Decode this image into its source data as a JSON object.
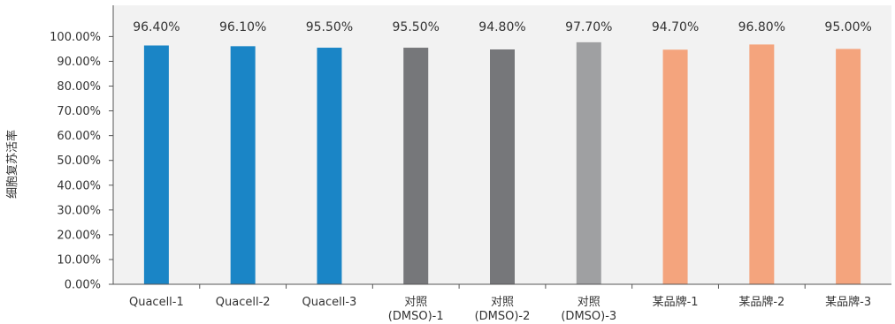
{
  "chart_data": {
    "type": "bar",
    "categories": [
      [
        "Quacell-1"
      ],
      [
        "Quacell-2"
      ],
      [
        "Quacell-3"
      ],
      [
        "对照",
        "(DMSO)-1"
      ],
      [
        "对照",
        "(DMSO)-2"
      ],
      [
        "对照",
        "(DMSO)-3"
      ],
      [
        "某品牌-1"
      ],
      [
        "某品牌-2"
      ],
      [
        "某品牌-3"
      ]
    ],
    "values": [
      96.4,
      96.1,
      95.5,
      95.5,
      94.8,
      97.7,
      94.7,
      96.8,
      95.0
    ],
    "data_labels": [
      "96.40%",
      "96.10%",
      "95.50%",
      "95.50%",
      "94.80%",
      "97.70%",
      "94.70%",
      "96.80%",
      "95.00%"
    ],
    "bar_colors": [
      "#1a85c6",
      "#1a85c6",
      "#1a85c6",
      "#76777a",
      "#76777a",
      "#9fa0a2",
      "#f4a47d",
      "#f4a47d",
      "#f4a47d"
    ],
    "ylabel": "细胞复苏活率",
    "ylim": [
      0,
      100
    ],
    "yticks": [
      "0.00%",
      "10.00%",
      "20.00%",
      "30.00%",
      "40.00%",
      "50.00%",
      "60.00%",
      "70.00%",
      "80.00%",
      "90.00%",
      "100.00%"
    ],
    "plot_background": "#f2f2f2",
    "grid": false,
    "legend": "none"
  }
}
